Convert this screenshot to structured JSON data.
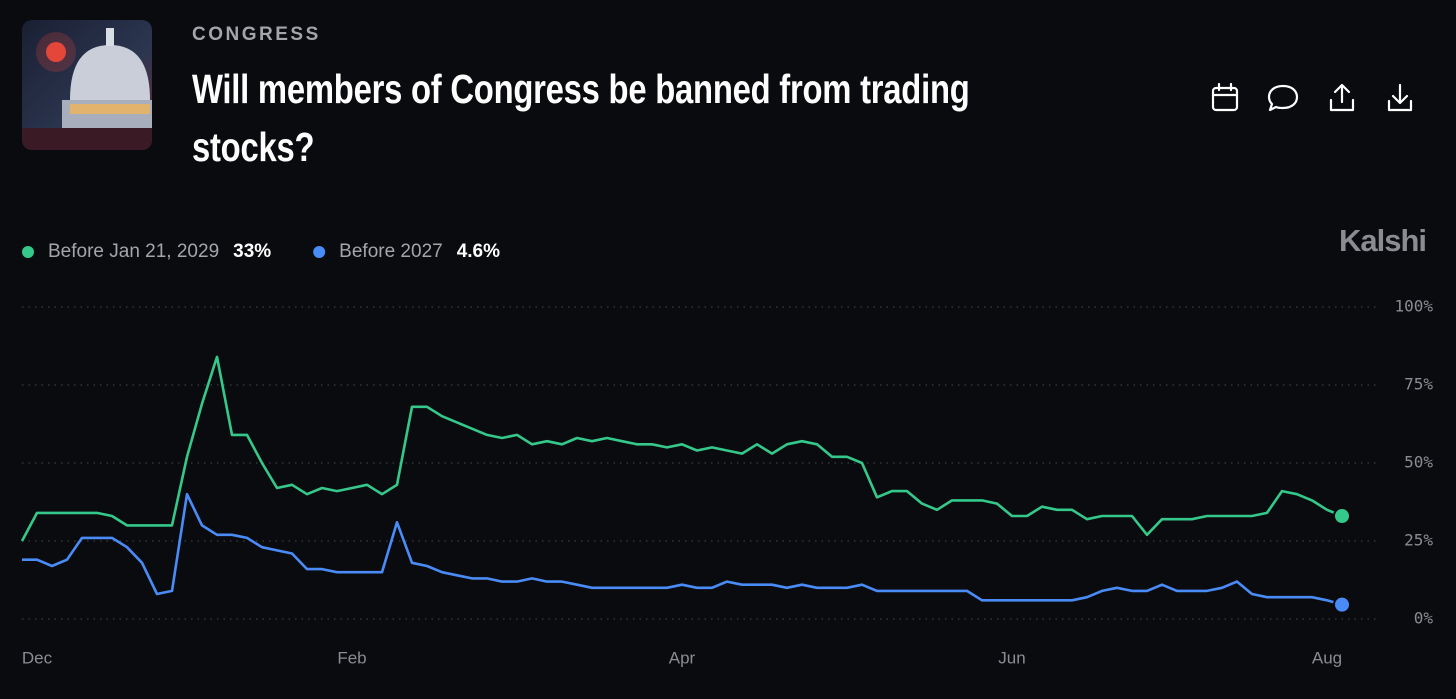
{
  "chart_data": {
    "type": "line",
    "category_label": "CONGRESS",
    "title": "Will members of Congress be banned from trading stocks?",
    "brand": "Kalshi",
    "categories": [
      null,
      "Dec",
      null,
      null,
      null,
      null,
      null,
      null,
      null,
      null,
      null,
      null,
      null,
      null,
      null,
      null,
      null,
      null,
      null,
      null,
      null,
      null,
      "Feb",
      null,
      null,
      null,
      null,
      null,
      null,
      null,
      null,
      null,
      null,
      null,
      null,
      null,
      null,
      null,
      null,
      null,
      null,
      null,
      null,
      null,
      "Apr",
      null,
      null,
      null,
      null,
      null,
      null,
      null,
      null,
      null,
      null,
      null,
      null,
      null,
      null,
      null,
      null,
      null,
      null,
      null,
      null,
      null,
      "Jun",
      null,
      null,
      null,
      null,
      null,
      null,
      null,
      null,
      null,
      null,
      null,
      null,
      null,
      null,
      null,
      null,
      null,
      null,
      null,
      null,
      "Aug",
      null
    ],
    "series": [
      {
        "name": "Before Jan 21, 2029",
        "color": "#34c98b",
        "current_label": "33%",
        "values": [
          25,
          34,
          34,
          34,
          34,
          34,
          33,
          30,
          30,
          30,
          30,
          52,
          69,
          84,
          59,
          59,
          50,
          42,
          43,
          40,
          42,
          41,
          42,
          43,
          40,
          43,
          68,
          68,
          65,
          63,
          61,
          59,
          58,
          59,
          56,
          57,
          56,
          58,
          57,
          58,
          57,
          56,
          56,
          55,
          56,
          54,
          55,
          54,
          53,
          56,
          53,
          56,
          57,
          56,
          52,
          52,
          50,
          39,
          41,
          41,
          37,
          35,
          38,
          38,
          38,
          37,
          33,
          33,
          36,
          35,
          35,
          32,
          33,
          33,
          33,
          27,
          32,
          32,
          32,
          33,
          33,
          33,
          33,
          34,
          41,
          40,
          38,
          35,
          33
        ]
      },
      {
        "name": "Before 2027",
        "color": "#4a8cf7",
        "current_label": "4.6%",
        "values": [
          19,
          19,
          17,
          19,
          26,
          26,
          26,
          23,
          18,
          8,
          9,
          40,
          30,
          27,
          27,
          26,
          23,
          22,
          21,
          16,
          16,
          15,
          15,
          15,
          15,
          31,
          18,
          17,
          15,
          14,
          13,
          13,
          12,
          12,
          13,
          12,
          12,
          11,
          10,
          10,
          10,
          10,
          10,
          10,
          11,
          10,
          10,
          12,
          11,
          11,
          11,
          10,
          11,
          10,
          10,
          10,
          11,
          9,
          9,
          9,
          9,
          9,
          9,
          9,
          6,
          6,
          6,
          6,
          6,
          6,
          6,
          7,
          9,
          10,
          9,
          9,
          11,
          9,
          9,
          9,
          10,
          12,
          8,
          7,
          7,
          7,
          7,
          6,
          4.6
        ]
      }
    ],
    "ylim": [
      0,
      100
    ],
    "yticks": [
      {
        "value": 0,
        "label": "0%"
      },
      {
        "value": 25,
        "label": "25%"
      },
      {
        "value": 50,
        "label": "50%"
      },
      {
        "value": 75,
        "label": "75%"
      },
      {
        "value": 100,
        "label": "100%"
      }
    ],
    "grid": true
  }
}
